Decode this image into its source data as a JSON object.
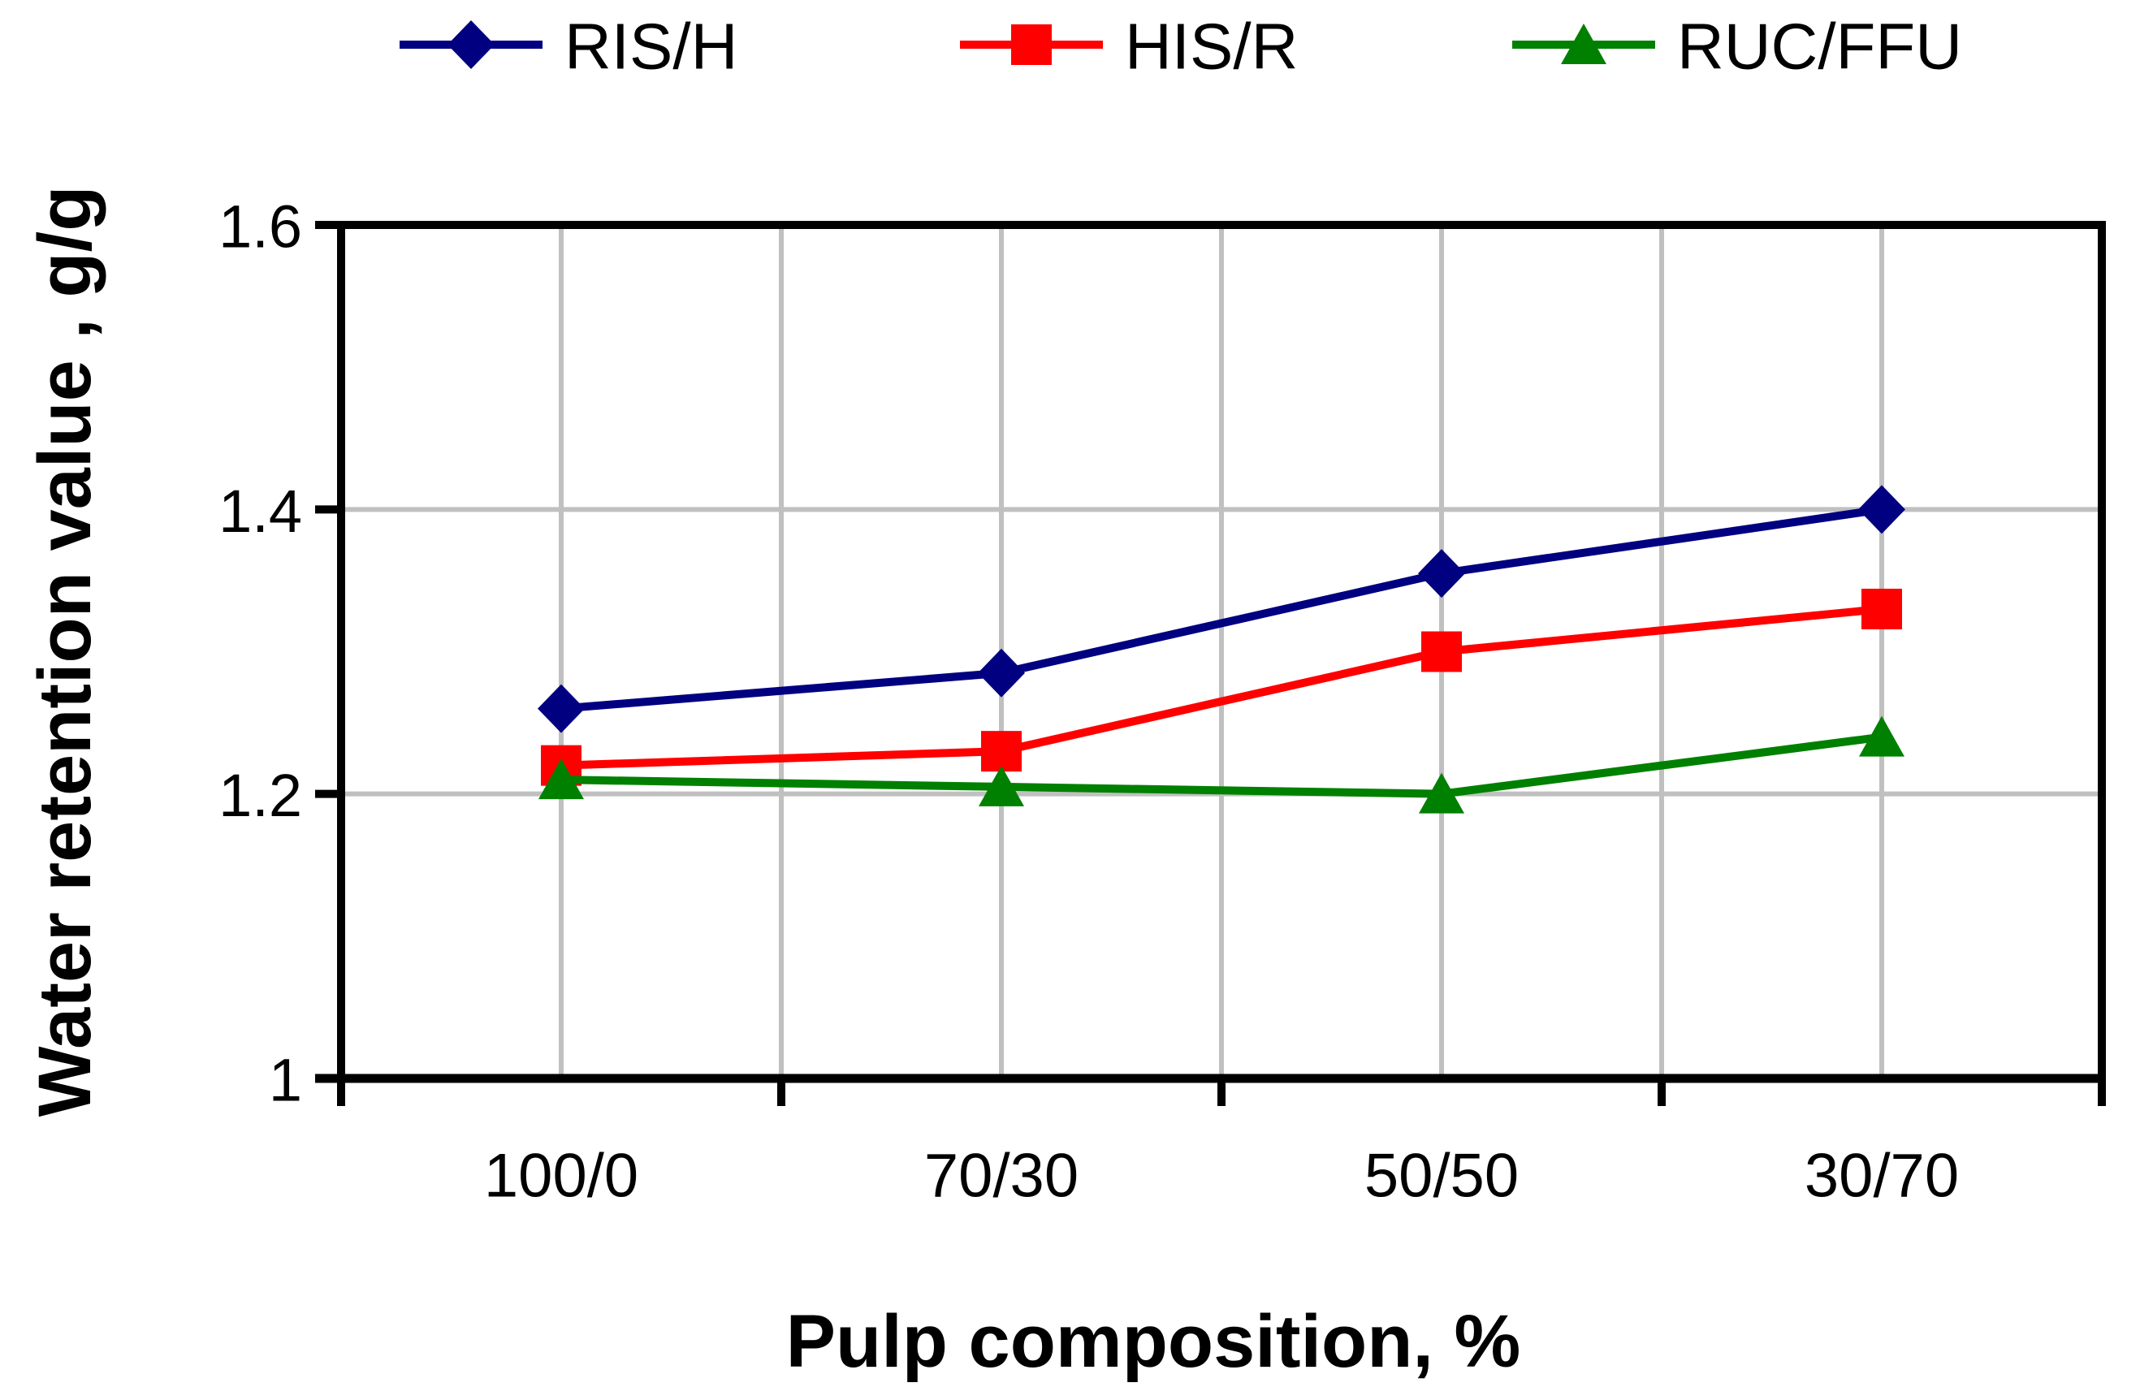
{
  "chart_data": {
    "type": "line",
    "title": "",
    "xlabel": "Pulp composition, %",
    "ylabel": "Water retention value , g/g",
    "categories": [
      "100/0",
      "70/30",
      "50/50",
      "30/70"
    ],
    "series": [
      {
        "name": "RIS/H",
        "color": "#000080",
        "marker": "diamond",
        "values": [
          1.26,
          1.285,
          1.355,
          1.4
        ]
      },
      {
        "name": "HIS/R",
        "color": "#FF0000",
        "marker": "square",
        "values": [
          1.22,
          1.23,
          1.3,
          1.33
        ]
      },
      {
        "name": "RUC/FFU",
        "color": "#008000",
        "marker": "triangle",
        "values": [
          1.21,
          1.205,
          1.2,
          1.24
        ]
      }
    ],
    "ylim": [
      1,
      1.6
    ],
    "yticks": [
      {
        "value": 1,
        "label": "1"
      },
      {
        "value": 1.2,
        "label": "1.2"
      },
      {
        "value": 1.4,
        "label": "1.4"
      },
      {
        "value": 1.6,
        "label": "1.6"
      }
    ],
    "ygrid_values": [
      1.2,
      1.4
    ],
    "grid": true,
    "legend_position": "top",
    "colors": {
      "grid": "#C0C0C0",
      "axis": "#000000",
      "text": "#000000",
      "background": "#FFFFFF"
    }
  }
}
